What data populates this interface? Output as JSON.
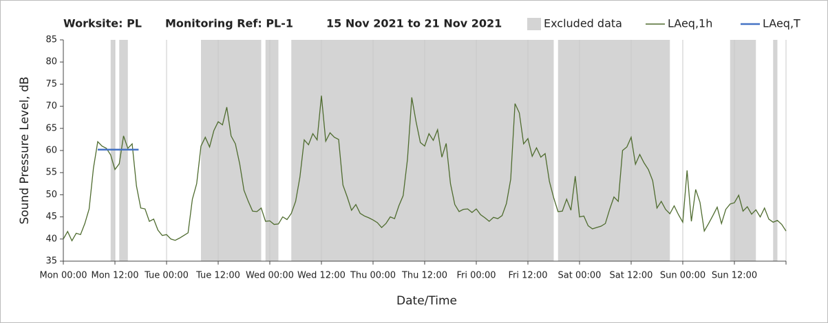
{
  "chart_data": {
    "type": "line",
    "title_parts": [
      "Worksite: PL",
      "Monitoring Ref: PL-1",
      "15 Nov 2021 to 21 Nov 2021"
    ],
    "x_label": "Date/Time",
    "y_label": "Sound Pressure Level, dB",
    "xlim": [
      0,
      168
    ],
    "ylim": [
      35,
      85
    ],
    "yticks": [
      35,
      40,
      45,
      50,
      55,
      60,
      65,
      70,
      75,
      80,
      85
    ],
    "xticks": [
      {
        "value": 0,
        "label": "Mon 00:00"
      },
      {
        "value": 12,
        "label": "Mon 12:00"
      },
      {
        "value": 24,
        "label": "Tue 00:00"
      },
      {
        "value": 36,
        "label": "Tue 12:00"
      },
      {
        "value": 48,
        "label": "Wed 00:00"
      },
      {
        "value": 60,
        "label": "Wed 12:00"
      },
      {
        "value": 72,
        "label": "Thu 00:00"
      },
      {
        "value": 84,
        "label": "Thu 12:00"
      },
      {
        "value": 96,
        "label": "Fri 00:00"
      },
      {
        "value": 108,
        "label": "Fri 12:00"
      },
      {
        "value": 120,
        "label": "Sat 00:00"
      },
      {
        "value": 132,
        "label": "Sat 12:00"
      },
      {
        "value": 144,
        "label": "Sun 00:00"
      },
      {
        "value": 156,
        "label": "Sun 12:00"
      },
      168
    ],
    "grid": "x",
    "shaded": {
      "name": "Excluded data",
      "color": "#d4d4d4",
      "ranges": [
        [
          11,
          12
        ],
        [
          13,
          15
        ],
        [
          32,
          46
        ],
        [
          47,
          50
        ],
        [
          53,
          114
        ],
        [
          115,
          141
        ],
        [
          155,
          161
        ],
        [
          165,
          166
        ]
      ]
    },
    "series": [
      {
        "name": "LAeq,1h",
        "color": "#4e6b2e",
        "x": [
          0,
          1,
          2,
          3,
          4,
          5,
          6,
          7,
          8,
          9,
          10,
          11,
          12,
          13,
          14,
          15,
          16,
          17,
          18,
          19,
          20,
          21,
          22,
          23,
          24,
          25,
          26,
          27,
          28,
          29,
          30,
          31,
          32,
          33,
          34,
          35,
          36,
          37,
          38,
          39,
          40,
          41,
          42,
          43,
          44,
          45,
          46,
          47,
          48,
          49,
          50,
          51,
          52,
          53,
          54,
          55,
          56,
          57,
          58,
          59,
          60,
          61,
          62,
          63,
          64,
          65,
          66,
          67,
          68,
          69,
          70,
          71,
          72,
          73,
          74,
          75,
          76,
          77,
          78,
          79,
          80,
          81,
          82,
          83,
          84,
          85,
          86,
          87,
          88,
          89,
          90,
          91,
          92,
          93,
          94,
          95,
          96,
          97,
          98,
          99,
          100,
          101,
          102,
          103,
          104,
          105,
          106,
          107,
          108,
          109,
          110,
          111,
          112,
          113,
          114,
          115,
          116,
          117,
          118,
          119,
          120,
          121,
          122,
          123,
          124,
          125,
          126,
          127,
          128,
          129,
          130,
          131,
          132,
          133,
          134,
          135,
          136,
          137,
          138,
          139,
          140,
          141,
          142,
          143,
          144,
          145,
          146,
          147,
          148,
          149,
          150,
          151,
          152,
          153,
          154,
          155,
          156,
          157,
          158,
          159,
          160,
          161,
          162,
          163,
          164,
          165,
          166,
          167,
          168
        ],
        "values": [
          40,
          41.7,
          39.6,
          41.3,
          41,
          43.5,
          46.8,
          56,
          62,
          61,
          60.5,
          59,
          55.7,
          57,
          63.3,
          60.5,
          61.5,
          52,
          47,
          46.8,
          44,
          44.5,
          42,
          40.8,
          41,
          40,
          39.7,
          40.2,
          40.8,
          41.4,
          49,
          52.5,
          61,
          63,
          60.8,
          64.5,
          66.5,
          65.8,
          69.8,
          63.3,
          61.5,
          57,
          51,
          48.5,
          46.3,
          46.2,
          47,
          44,
          44.1,
          43.3,
          43.4,
          45,
          44.4,
          45.8,
          48.5,
          54,
          62.4,
          61.3,
          63.8,
          62.4,
          72.4,
          62.1,
          64,
          63,
          62.5,
          52.2,
          49.5,
          46.5,
          47.8,
          45.8,
          45.2,
          44.8,
          44.3,
          43.7,
          42.6,
          43.5,
          45,
          44.6,
          47.5,
          49.8,
          58,
          72,
          66.5,
          61.8,
          61,
          63.8,
          62.3,
          64.7,
          58.5,
          61.6,
          52.5,
          47.8,
          46.2,
          46.7,
          46.8,
          46,
          46.8,
          45.5,
          44.8,
          44,
          44.9,
          44.6,
          45.3,
          48,
          53.5,
          70.6,
          68.5,
          61.5,
          62.7,
          58.7,
          60.6,
          58.5,
          59.3,
          53,
          49.3,
          46.2,
          46.3,
          49,
          46.5,
          54.2,
          45,
          45.2,
          43,
          42.3,
          42.6,
          42.9,
          43.5,
          46.7,
          49.5,
          48.5,
          60,
          60.8,
          63,
          56.9,
          59.1,
          57.2,
          55.7,
          53.2,
          47,
          48.5,
          46.7,
          45.7,
          47.5,
          45.5,
          43.8,
          55.5,
          44,
          51.2,
          48.3,
          41.8,
          43.5,
          45.3,
          47.2,
          43.5,
          46.7,
          47.9,
          48.2,
          49.9,
          46.3,
          47.3,
          45.6,
          46.6,
          45,
          47,
          44.5,
          43.8,
          44.2,
          43.3,
          41.8
        ]
      },
      {
        "name": "LAeq,T",
        "color": "#4472c4",
        "x": [
          8,
          17.5
        ],
        "values": [
          60.2,
          60.2
        ]
      }
    ]
  }
}
